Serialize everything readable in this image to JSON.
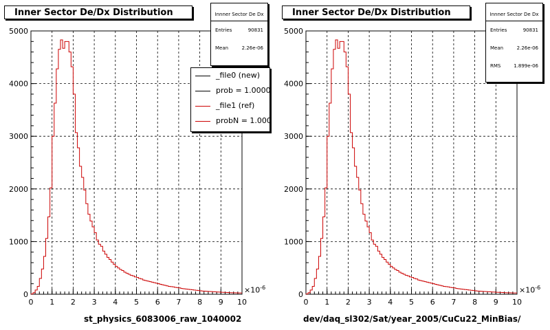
{
  "chart_data": [
    {
      "type": "histogram",
      "title": "Inner Sector De/Dx Distribution",
      "xlabel": "st_physics_6083006_raw_1040002",
      "x_multiplier": "×10",
      "x_multiplier_exp": "-6",
      "xlim": [
        0,
        10
      ],
      "ylim": [
        0,
        5000
      ],
      "x_ticks": [
        "0",
        "1",
        "2",
        "3",
        "4",
        "5",
        "6",
        "7",
        "8",
        "9",
        "10"
      ],
      "y_ticks": [
        "0",
        "1000",
        "2000",
        "3000",
        "4000",
        "5000"
      ],
      "grid": true,
      "stats": {
        "title": "Innner Sector De Dx",
        "rows": [
          {
            "label": "Entries",
            "value": "90831"
          },
          {
            "label": "Mean",
            "value": "2.26e-06"
          }
        ]
      },
      "legend": {
        "placement": "top-right",
        "entries": [
          {
            "label": "_file0 (new)",
            "color": "#000000"
          },
          {
            "label": "prob = 1.000000",
            "color": "#000000"
          },
          {
            "label": "_file1 (ref)",
            "color": "#cc0000"
          },
          {
            "label": "probN = 1.000000",
            "color": "#cc0000"
          }
        ]
      },
      "series": [
        {
          "color": "#cc0000",
          "bin_width": 0.1,
          "x_start": 0,
          "values": [
            5,
            30,
            80,
            150,
            300,
            480,
            720,
            1060,
            1470,
            2020,
            3000,
            3630,
            4280,
            4650,
            4830,
            4670,
            4800,
            4800,
            4600,
            4320,
            3800,
            3070,
            2780,
            2430,
            2220,
            1980,
            1720,
            1520,
            1390,
            1280,
            1170,
            1030,
            950,
            910,
            820,
            760,
            700,
            660,
            610,
            570,
            530,
            500,
            470,
            450,
            420,
            400,
            380,
            360,
            350,
            330,
            320,
            300,
            290,
            270,
            260,
            250,
            240,
            230,
            220,
            210,
            200,
            190,
            180,
            170,
            160,
            150,
            145,
            140,
            130,
            125,
            120,
            110,
            105,
            100,
            95,
            90,
            85,
            80,
            75,
            70,
            65,
            60,
            58,
            55,
            52,
            50,
            48,
            45,
            42,
            40,
            38,
            36,
            34,
            32,
            30,
            28,
            27,
            26,
            25,
            24
          ]
        }
      ]
    },
    {
      "type": "histogram",
      "title": "Inner Sector De/Dx Distribution",
      "xlabel": "dev/daq_sl302/Sat/year_2005/CuCu22_MinBias/",
      "x_multiplier": "×10",
      "x_multiplier_exp": "-6",
      "xlim": [
        0,
        10
      ],
      "ylim": [
        0,
        5000
      ],
      "x_ticks": [
        "0",
        "1",
        "2",
        "3",
        "4",
        "5",
        "6",
        "7",
        "8",
        "9",
        "10"
      ],
      "y_ticks": [
        "0",
        "1000",
        "2000",
        "3000",
        "4000",
        "5000"
      ],
      "grid": true,
      "stats": {
        "title": "Innner Sector De Dx",
        "rows": [
          {
            "label": "Entries",
            "value": "90831"
          },
          {
            "label": "Mean",
            "value": "2.26e-06"
          },
          {
            "label": "RMS",
            "value": "1.899e-06"
          }
        ]
      },
      "series": [
        {
          "color": "#cc0000",
          "bin_width": 0.1,
          "x_start": 0,
          "values": [
            5,
            30,
            80,
            150,
            300,
            480,
            720,
            1060,
            1470,
            2020,
            3000,
            3630,
            4280,
            4650,
            4830,
            4670,
            4800,
            4800,
            4600,
            4320,
            3800,
            3070,
            2780,
            2430,
            2220,
            1980,
            1720,
            1520,
            1390,
            1280,
            1170,
            1030,
            950,
            910,
            820,
            760,
            700,
            660,
            610,
            570,
            530,
            500,
            470,
            450,
            420,
            400,
            380,
            360,
            350,
            330,
            320,
            300,
            290,
            270,
            260,
            250,
            240,
            230,
            220,
            210,
            200,
            190,
            180,
            170,
            160,
            150,
            145,
            140,
            130,
            125,
            120,
            110,
            105,
            100,
            95,
            90,
            85,
            80,
            75,
            70,
            65,
            60,
            58,
            55,
            52,
            50,
            48,
            45,
            42,
            40,
            38,
            36,
            34,
            32,
            30,
            28,
            27,
            26,
            25,
            24
          ]
        }
      ]
    }
  ]
}
